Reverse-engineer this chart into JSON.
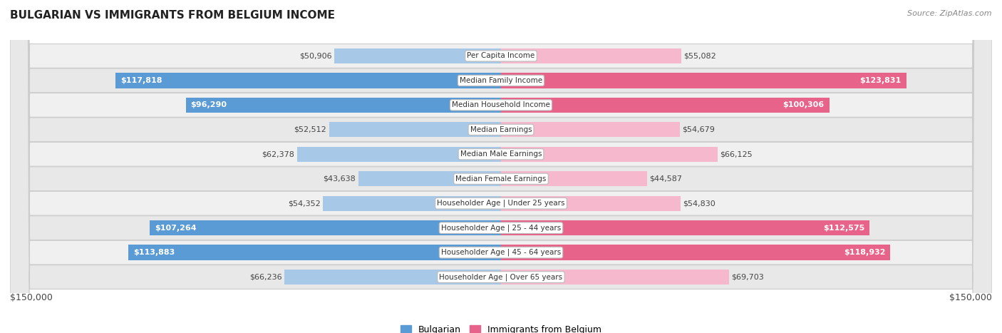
{
  "title": "BULGARIAN VS IMMIGRANTS FROM BELGIUM INCOME",
  "source": "Source: ZipAtlas.com",
  "categories": [
    "Per Capita Income",
    "Median Family Income",
    "Median Household Income",
    "Median Earnings",
    "Median Male Earnings",
    "Median Female Earnings",
    "Householder Age | Under 25 years",
    "Householder Age | 25 - 44 years",
    "Householder Age | 45 - 64 years",
    "Householder Age | Over 65 years"
  ],
  "bulgarian_values": [
    50906,
    117818,
    96290,
    52512,
    62378,
    43638,
    54352,
    107264,
    113883,
    66236
  ],
  "belgium_values": [
    55082,
    123831,
    100306,
    54679,
    66125,
    44587,
    54830,
    112575,
    118932,
    69703
  ],
  "bulgarian_labels": [
    "$50,906",
    "$117,818",
    "$96,290",
    "$52,512",
    "$62,378",
    "$43,638",
    "$54,352",
    "$107,264",
    "$113,883",
    "$66,236"
  ],
  "belgium_labels": [
    "$55,082",
    "$123,831",
    "$100,306",
    "$54,679",
    "$66,125",
    "$44,587",
    "$54,830",
    "$112,575",
    "$118,932",
    "$69,703"
  ],
  "max_value": 150000,
  "bulgarian_color_light": "#a8c8e8",
  "bulgarian_color_dark": "#5b9bd5",
  "belgium_color_light": "#f5b8cc",
  "belgium_color_dark": "#e8638a",
  "bar_height": 0.62,
  "background_color": "#ffffff",
  "row_bg_even": "#f0f0f0",
  "row_bg_odd": "#e8e8e8",
  "label_threshold": 88000,
  "x_label_left": "$150,000",
  "x_label_right": "$150,000",
  "legend_bulgarian": "Bulgarian",
  "legend_belgium": "Immigrants from Belgium",
  "title_fontsize": 11,
  "source_fontsize": 8,
  "label_fontsize": 8,
  "cat_fontsize": 7.5
}
